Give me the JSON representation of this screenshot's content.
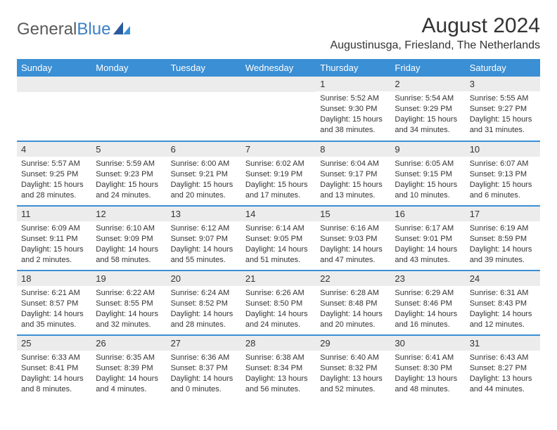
{
  "logo": {
    "text1": "General",
    "text2": "Blue"
  },
  "title": "August 2024",
  "location": "Augustinusga, Friesland, The Netherlands",
  "header_bg": "#3b8fd4",
  "header_fg": "#ffffff",
  "divider_color": "#3b8fd4",
  "daynum_bg": "#ececec",
  "text_color": "#333333",
  "columns": [
    "Sunday",
    "Monday",
    "Tuesday",
    "Wednesday",
    "Thursday",
    "Friday",
    "Saturday"
  ],
  "weeks": [
    [
      null,
      null,
      null,
      null,
      {
        "d": "1",
        "sr": "5:52 AM",
        "ss": "9:30 PM",
        "dl": "15 hours and 38 minutes."
      },
      {
        "d": "2",
        "sr": "5:54 AM",
        "ss": "9:29 PM",
        "dl": "15 hours and 34 minutes."
      },
      {
        "d": "3",
        "sr": "5:55 AM",
        "ss": "9:27 PM",
        "dl": "15 hours and 31 minutes."
      }
    ],
    [
      {
        "d": "4",
        "sr": "5:57 AM",
        "ss": "9:25 PM",
        "dl": "15 hours and 28 minutes."
      },
      {
        "d": "5",
        "sr": "5:59 AM",
        "ss": "9:23 PM",
        "dl": "15 hours and 24 minutes."
      },
      {
        "d": "6",
        "sr": "6:00 AM",
        "ss": "9:21 PM",
        "dl": "15 hours and 20 minutes."
      },
      {
        "d": "7",
        "sr": "6:02 AM",
        "ss": "9:19 PM",
        "dl": "15 hours and 17 minutes."
      },
      {
        "d": "8",
        "sr": "6:04 AM",
        "ss": "9:17 PM",
        "dl": "15 hours and 13 minutes."
      },
      {
        "d": "9",
        "sr": "6:05 AM",
        "ss": "9:15 PM",
        "dl": "15 hours and 10 minutes."
      },
      {
        "d": "10",
        "sr": "6:07 AM",
        "ss": "9:13 PM",
        "dl": "15 hours and 6 minutes."
      }
    ],
    [
      {
        "d": "11",
        "sr": "6:09 AM",
        "ss": "9:11 PM",
        "dl": "15 hours and 2 minutes."
      },
      {
        "d": "12",
        "sr": "6:10 AM",
        "ss": "9:09 PM",
        "dl": "14 hours and 58 minutes."
      },
      {
        "d": "13",
        "sr": "6:12 AM",
        "ss": "9:07 PM",
        "dl": "14 hours and 55 minutes."
      },
      {
        "d": "14",
        "sr": "6:14 AM",
        "ss": "9:05 PM",
        "dl": "14 hours and 51 minutes."
      },
      {
        "d": "15",
        "sr": "6:16 AM",
        "ss": "9:03 PM",
        "dl": "14 hours and 47 minutes."
      },
      {
        "d": "16",
        "sr": "6:17 AM",
        "ss": "9:01 PM",
        "dl": "14 hours and 43 minutes."
      },
      {
        "d": "17",
        "sr": "6:19 AM",
        "ss": "8:59 PM",
        "dl": "14 hours and 39 minutes."
      }
    ],
    [
      {
        "d": "18",
        "sr": "6:21 AM",
        "ss": "8:57 PM",
        "dl": "14 hours and 35 minutes."
      },
      {
        "d": "19",
        "sr": "6:22 AM",
        "ss": "8:55 PM",
        "dl": "14 hours and 32 minutes."
      },
      {
        "d": "20",
        "sr": "6:24 AM",
        "ss": "8:52 PM",
        "dl": "14 hours and 28 minutes."
      },
      {
        "d": "21",
        "sr": "6:26 AM",
        "ss": "8:50 PM",
        "dl": "14 hours and 24 minutes."
      },
      {
        "d": "22",
        "sr": "6:28 AM",
        "ss": "8:48 PM",
        "dl": "14 hours and 20 minutes."
      },
      {
        "d": "23",
        "sr": "6:29 AM",
        "ss": "8:46 PM",
        "dl": "14 hours and 16 minutes."
      },
      {
        "d": "24",
        "sr": "6:31 AM",
        "ss": "8:43 PM",
        "dl": "14 hours and 12 minutes."
      }
    ],
    [
      {
        "d": "25",
        "sr": "6:33 AM",
        "ss": "8:41 PM",
        "dl": "14 hours and 8 minutes."
      },
      {
        "d": "26",
        "sr": "6:35 AM",
        "ss": "8:39 PM",
        "dl": "14 hours and 4 minutes."
      },
      {
        "d": "27",
        "sr": "6:36 AM",
        "ss": "8:37 PM",
        "dl": "14 hours and 0 minutes."
      },
      {
        "d": "28",
        "sr": "6:38 AM",
        "ss": "8:34 PM",
        "dl": "13 hours and 56 minutes."
      },
      {
        "d": "29",
        "sr": "6:40 AM",
        "ss": "8:32 PM",
        "dl": "13 hours and 52 minutes."
      },
      {
        "d": "30",
        "sr": "6:41 AM",
        "ss": "8:30 PM",
        "dl": "13 hours and 48 minutes."
      },
      {
        "d": "31",
        "sr": "6:43 AM",
        "ss": "8:27 PM",
        "dl": "13 hours and 44 minutes."
      }
    ]
  ],
  "labels": {
    "sunrise": "Sunrise:",
    "sunset": "Sunset:",
    "daylight": "Daylight:"
  }
}
